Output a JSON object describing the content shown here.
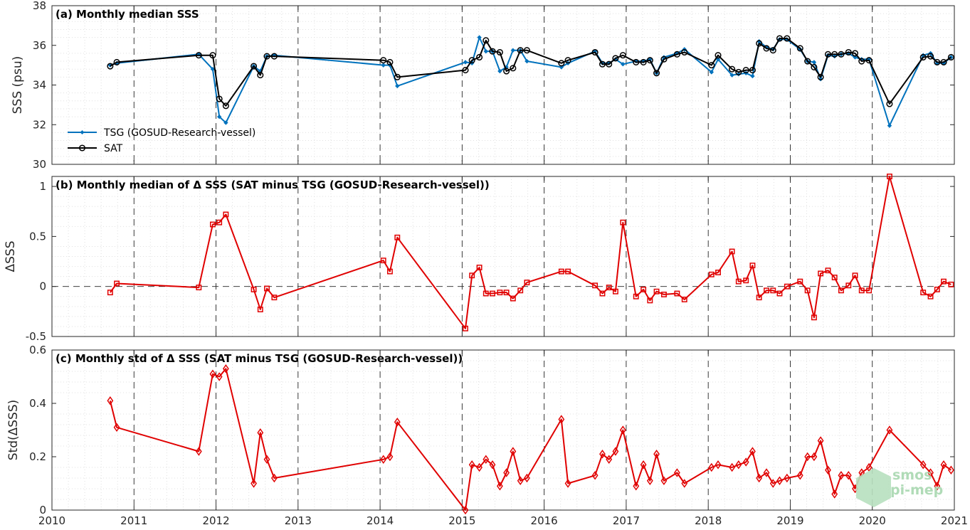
{
  "watermark": {
    "line1": "smos",
    "line2": "pi-mep"
  },
  "colors": {
    "tsg": "#0072BD",
    "sat": "#000000",
    "delta": "#e00000",
    "grid": "#e0e0e0"
  },
  "chart_data": [
    {
      "type": "line",
      "title": "(a) Monthly median SSS",
      "ylabel": "SSS (psu)",
      "ylim": [
        30,
        38
      ],
      "yticks": [
        "30",
        "32",
        "34",
        "36",
        "38"
      ],
      "xlim": [
        2010,
        2021
      ],
      "xticks": [
        "2010",
        "2011",
        "2012",
        "2013",
        "2014",
        "2015",
        "2016",
        "2017",
        "2018",
        "2019",
        "2020",
        "2021"
      ],
      "legend": "lower-left",
      "series": [
        {
          "name": "TSG (GOSUD-Research-vessel)",
          "marker": "dot",
          "x": [
            2010.71,
            2010.79,
            2011.79,
            2011.96,
            2012.04,
            2012.12,
            2012.46,
            2012.54,
            2012.62,
            2012.71,
            2014.04,
            2014.12,
            2014.21,
            2015.04,
            2015.12,
            2015.21,
            2015.29,
            2015.37,
            2015.46,
            2015.54,
            2015.62,
            2015.71,
            2015.79,
            2016.21,
            2016.29,
            2016.62,
            2016.71,
            2016.79,
            2016.87,
            2016.96,
            2017.12,
            2017.21,
            2017.29,
            2017.37,
            2017.46,
            2017.62,
            2017.71,
            2018.04,
            2018.12,
            2018.29,
            2018.37,
            2018.46,
            2018.54,
            2018.62,
            2018.71,
            2018.79,
            2018.87,
            2018.96,
            2019.12,
            2019.21,
            2019.29,
            2019.37,
            2019.46,
            2019.54,
            2019.62,
            2019.71,
            2019.79,
            2019.87,
            2019.96,
            2020.21,
            2020.62,
            2020.71,
            2020.79,
            2020.87,
            2020.96
          ],
          "y": [
            35.0,
            35.1,
            35.55,
            34.8,
            32.4,
            32.1,
            34.95,
            34.7,
            35.45,
            35.5,
            35.0,
            35.0,
            33.95,
            35.15,
            35.1,
            36.4,
            35.7,
            35.7,
            34.7,
            34.9,
            35.75,
            35.75,
            35.2,
            34.9,
            35.1,
            35.7,
            35.1,
            35.1,
            35.3,
            35.05,
            35.2,
            35.2,
            35.3,
            34.6,
            35.4,
            35.6,
            35.8,
            34.65,
            35.3,
            34.5,
            34.55,
            34.6,
            34.45,
            36.2,
            35.9,
            35.8,
            36.3,
            36.3,
            35.8,
            35.2,
            35.15,
            34.3,
            35.5,
            35.45,
            35.55,
            35.6,
            35.4,
            35.3,
            35.3,
            31.95,
            35.5,
            35.6,
            35.1,
            35.1,
            35.4
          ]
        },
        {
          "name": "SAT",
          "marker": "circle",
          "x": [
            2010.71,
            2010.79,
            2011.79,
            2011.96,
            2012.04,
            2012.12,
            2012.46,
            2012.54,
            2012.62,
            2012.71,
            2014.04,
            2014.12,
            2014.21,
            2015.04,
            2015.12,
            2015.21,
            2015.29,
            2015.37,
            2015.46,
            2015.54,
            2015.62,
            2015.71,
            2015.79,
            2016.21,
            2016.29,
            2016.62,
            2016.71,
            2016.79,
            2016.87,
            2016.96,
            2017.12,
            2017.21,
            2017.29,
            2017.37,
            2017.46,
            2017.62,
            2017.71,
            2018.04,
            2018.12,
            2018.29,
            2018.37,
            2018.46,
            2018.54,
            2018.62,
            2018.71,
            2018.79,
            2018.87,
            2018.96,
            2019.12,
            2019.21,
            2019.29,
            2019.37,
            2019.46,
            2019.54,
            2019.62,
            2019.71,
            2019.79,
            2019.87,
            2019.96,
            2020.21,
            2020.62,
            2020.71,
            2020.79,
            2020.87,
            2020.96
          ],
          "y": [
            34.95,
            35.15,
            35.5,
            35.5,
            33.3,
            32.95,
            34.95,
            34.5,
            35.45,
            35.45,
            35.25,
            35.15,
            34.4,
            34.75,
            35.25,
            35.4,
            36.25,
            35.7,
            35.65,
            34.7,
            34.85,
            35.75,
            35.75,
            35.1,
            35.25,
            35.65,
            35.05,
            35.05,
            35.35,
            35.5,
            35.15,
            35.15,
            35.25,
            34.6,
            35.3,
            35.55,
            35.65,
            35.0,
            35.5,
            34.8,
            34.65,
            34.75,
            34.75,
            36.1,
            35.85,
            35.75,
            36.35,
            36.35,
            35.85,
            35.2,
            34.9,
            34.4,
            35.55,
            35.55,
            35.55,
            35.65,
            35.6,
            35.2,
            35.25,
            33.05,
            35.4,
            35.45,
            35.15,
            35.15,
            35.4
          ]
        }
      ]
    },
    {
      "type": "line",
      "title": "(b) Monthly median of Δ SSS (SAT minus TSG (GOSUD-Research-vessel))",
      "ylabel": "ΔSSS",
      "ylim": [
        -0.5,
        1.1
      ],
      "yticks": [
        "-0.5",
        "0",
        "0.5",
        "1"
      ],
      "xlim": [
        2010,
        2021
      ],
      "xticks": [
        "2010",
        "2011",
        "2012",
        "2013",
        "2014",
        "2015",
        "2016",
        "2017",
        "2018",
        "2019",
        "2020",
        "2021"
      ],
      "zero_line": true,
      "series": [
        {
          "name": "",
          "marker": "square",
          "x": [
            2010.71,
            2010.79,
            2011.79,
            2011.96,
            2012.04,
            2012.12,
            2012.46,
            2012.54,
            2012.62,
            2012.71,
            2014.04,
            2014.12,
            2014.21,
            2015.04,
            2015.12,
            2015.21,
            2015.29,
            2015.37,
            2015.46,
            2015.54,
            2015.62,
            2015.71,
            2015.79,
            2016.21,
            2016.29,
            2016.62,
            2016.71,
            2016.79,
            2016.87,
            2016.96,
            2017.12,
            2017.21,
            2017.29,
            2017.37,
            2017.46,
            2017.62,
            2017.71,
            2018.04,
            2018.12,
            2018.29,
            2018.37,
            2018.46,
            2018.54,
            2018.62,
            2018.71,
            2018.79,
            2018.87,
            2018.96,
            2019.12,
            2019.21,
            2019.29,
            2019.37,
            2019.46,
            2019.54,
            2019.62,
            2019.71,
            2019.79,
            2019.87,
            2019.96,
            2020.21,
            2020.62,
            2020.71,
            2020.79,
            2020.87,
            2020.96
          ],
          "y": [
            -0.06,
            0.03,
            -0.01,
            0.62,
            0.64,
            0.72,
            -0.03,
            -0.23,
            -0.02,
            -0.11,
            0.26,
            0.15,
            0.49,
            -0.42,
            0.11,
            0.19,
            -0.07,
            -0.07,
            -0.06,
            -0.06,
            -0.12,
            -0.04,
            0.04,
            0.15,
            0.15,
            0.01,
            -0.07,
            -0.01,
            -0.05,
            0.64,
            -0.1,
            -0.03,
            -0.14,
            -0.05,
            -0.08,
            -0.07,
            -0.13,
            0.12,
            0.14,
            0.35,
            0.05,
            0.06,
            0.21,
            -0.11,
            -0.04,
            -0.04,
            -0.07,
            0.0,
            0.05,
            -0.04,
            -0.31,
            0.13,
            0.16,
            0.09,
            -0.04,
            0.01,
            0.11,
            -0.04,
            -0.04,
            1.1,
            -0.06,
            -0.1,
            -0.03,
            0.05,
            0.02
          ]
        }
      ]
    },
    {
      "type": "line",
      "title": "(c) Monthly std of Δ SSS (SAT minus TSG (GOSUD-Research-vessel))",
      "ylabel": "Std(ΔSSS)",
      "ylim": [
        0,
        0.6
      ],
      "yticks": [
        "0",
        "0.2",
        "0.4",
        "0.6"
      ],
      "xlim": [
        2010,
        2021
      ],
      "xticks": [
        "2010",
        "2011",
        "2012",
        "2013",
        "2014",
        "2015",
        "2016",
        "2017",
        "2018",
        "2019",
        "2020",
        "2021"
      ],
      "series": [
        {
          "name": "",
          "marker": "diamond",
          "x": [
            2010.71,
            2010.79,
            2011.79,
            2011.96,
            2012.04,
            2012.12,
            2012.46,
            2012.54,
            2012.62,
            2012.71,
            2014.04,
            2014.12,
            2014.21,
            2015.04,
            2015.12,
            2015.21,
            2015.29,
            2015.37,
            2015.46,
            2015.54,
            2015.62,
            2015.71,
            2015.79,
            2016.21,
            2016.29,
            2016.62,
            2016.71,
            2016.79,
            2016.87,
            2016.96,
            2017.12,
            2017.21,
            2017.29,
            2017.37,
            2017.46,
            2017.62,
            2017.71,
            2018.04,
            2018.12,
            2018.29,
            2018.37,
            2018.46,
            2018.54,
            2018.62,
            2018.71,
            2018.79,
            2018.87,
            2018.96,
            2019.12,
            2019.21,
            2019.29,
            2019.37,
            2019.46,
            2019.54,
            2019.62,
            2019.71,
            2019.79,
            2019.87,
            2019.96,
            2020.21,
            2020.62,
            2020.71,
            2020.79,
            2020.87,
            2020.96
          ],
          "y": [
            0.41,
            0.31,
            0.22,
            0.51,
            0.5,
            0.53,
            0.1,
            0.29,
            0.19,
            0.12,
            0.19,
            0.2,
            0.33,
            0.0,
            0.17,
            0.16,
            0.19,
            0.17,
            0.09,
            0.14,
            0.22,
            0.11,
            0.12,
            0.34,
            0.1,
            0.13,
            0.21,
            0.19,
            0.22,
            0.3,
            0.09,
            0.17,
            0.11,
            0.21,
            0.11,
            0.14,
            0.1,
            0.16,
            0.17,
            0.16,
            0.17,
            0.18,
            0.22,
            0.12,
            0.14,
            0.1,
            0.11,
            0.12,
            0.13,
            0.2,
            0.2,
            0.26,
            0.15,
            0.06,
            0.13,
            0.13,
            0.08,
            0.14,
            0.16,
            0.3,
            0.17,
            0.14,
            0.09,
            0.17,
            0.15
          ]
        }
      ]
    }
  ]
}
